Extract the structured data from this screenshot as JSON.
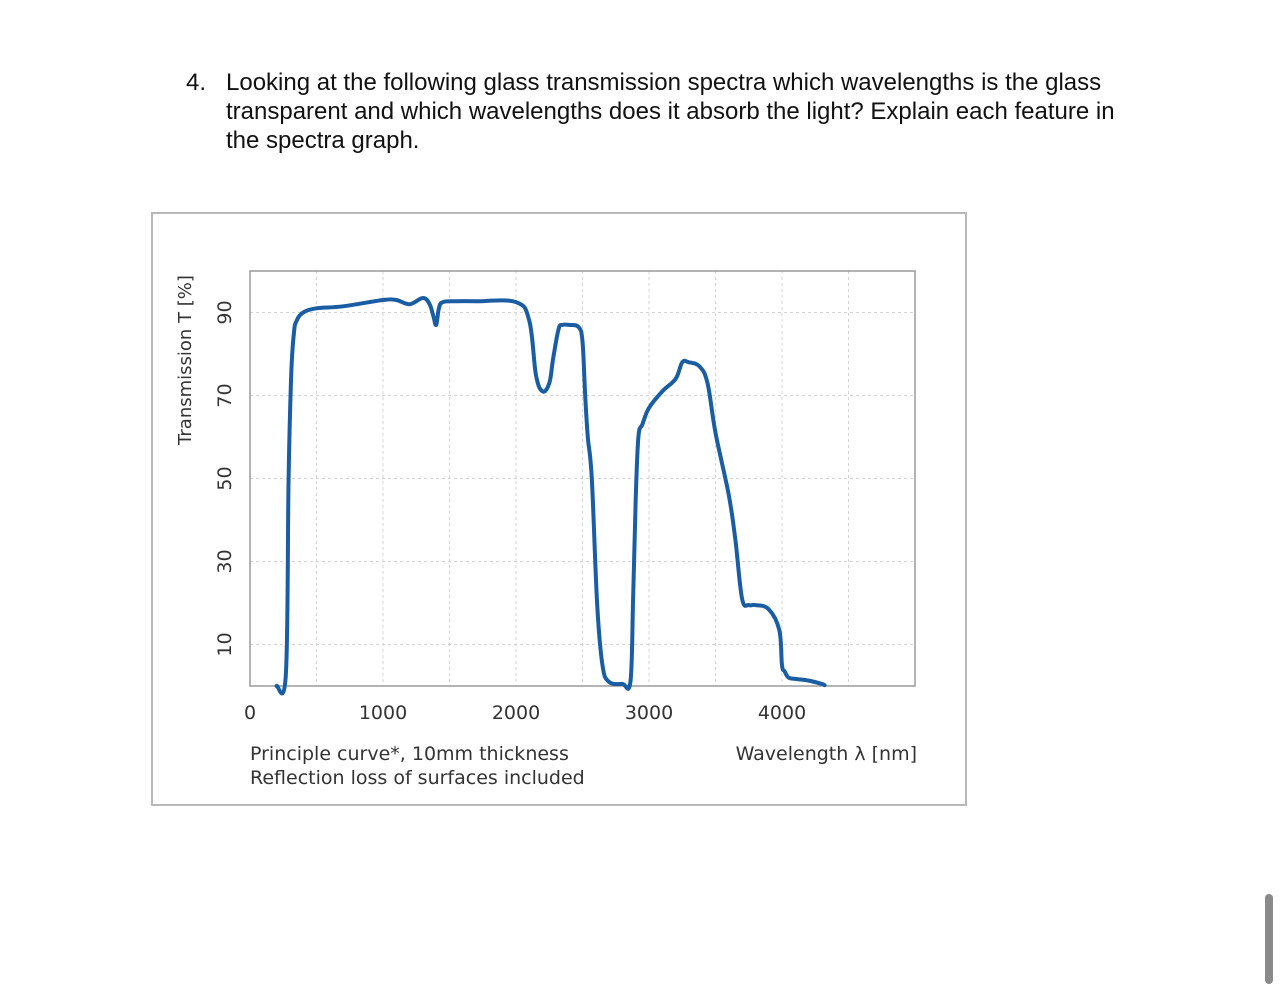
{
  "question": {
    "number": "4.",
    "text": "Looking at the following glass transmission spectra which wavelengths is the glass transparent and which wavelengths does it absorb the light? Explain each feature in the spectra graph."
  },
  "chart_data": {
    "type": "line",
    "title": "",
    "xlabel": "Wavelength λ [nm]",
    "ylabel": "Transmission T [%]",
    "xlim": [
      0,
      5000
    ],
    "ylim": [
      0,
      100
    ],
    "x_ticks": [
      0,
      1000,
      2000,
      3000,
      4000
    ],
    "y_ticks": [
      10,
      30,
      50,
      70,
      90
    ],
    "grid": true,
    "notes": [
      "Principle curve*, 10mm thickness",
      "Reflection loss of surfaces included"
    ],
    "color": "#1a5da3",
    "series": [
      {
        "x": [
          200,
          270,
          290,
          310,
          330,
          350,
          400,
          500,
          700,
          1000,
          1100,
          1200,
          1300,
          1350,
          1380,
          1400,
          1420,
          1450,
          1550,
          1700,
          2000,
          2100,
          2150,
          2200,
          2250,
          2280,
          2320,
          2350,
          2400,
          2470,
          2500,
          2520,
          2540,
          2570,
          2610,
          2650,
          2700,
          2800,
          2860,
          2880,
          2900,
          2920,
          2950,
          3000,
          3100,
          3200,
          3250,
          3300,
          3380,
          3440,
          3500,
          3600,
          3650,
          3700,
          3750,
          3800,
          3900,
          3980,
          4000,
          4020,
          4050,
          4100,
          4200,
          4300,
          4320
        ],
        "y": [
          0,
          3,
          50,
          75,
          85,
          88,
          90,
          91,
          91.5,
          93,
          93,
          92,
          93.5,
          92,
          89,
          87,
          91,
          92.5,
          92.7,
          92.7,
          92.5,
          88,
          75,
          71,
          73,
          79,
          86,
          87,
          87,
          86.5,
          83,
          70,
          60,
          50,
          20,
          5,
          1,
          0.5,
          1,
          20,
          45,
          60,
          63,
          67,
          71,
          74,
          78,
          78,
          77,
          73,
          61,
          46,
          35,
          21,
          19.5,
          19.5,
          18.5,
          13.5,
          5,
          3.5,
          2,
          1.7,
          1.3,
          0.5,
          0.2
        ]
      }
    ]
  }
}
